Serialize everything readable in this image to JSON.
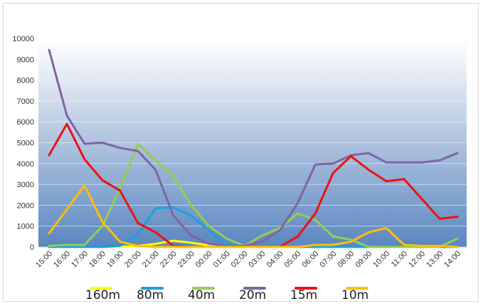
{
  "chart_data": {
    "type": "line",
    "title": "",
    "xlabel": "",
    "ylabel": "",
    "ylim": [
      0,
      10000
    ],
    "y_ticks": [
      "0",
      "1000",
      "2000",
      "3000",
      "4000",
      "5000",
      "6000",
      "7000",
      "8000",
      "9000",
      "10000"
    ],
    "categories": [
      "15:00",
      "16:00",
      "17:00",
      "18:00",
      "19:00",
      "20:00",
      "21:00",
      "22:00",
      "23:00",
      "00:00",
      "01:00",
      "02:00",
      "03:00",
      "04:00",
      "05:00",
      "06:00",
      "07:00",
      "08:00",
      "09:00",
      "10:00",
      "11:00",
      "12:00",
      "13:00",
      "14:00"
    ],
    "grid": true,
    "legend_position": "bottom",
    "background": "blue vertical gradient",
    "series": [
      {
        "name": "160m",
        "color": "#ffff00",
        "values": [
          0,
          0,
          0,
          0,
          0,
          50,
          150,
          300,
          200,
          80,
          0,
          0,
          0,
          0,
          0,
          0,
          0,
          0,
          0,
          0,
          0,
          0,
          0,
          0
        ]
      },
      {
        "name": "80m",
        "color": "#1aa0e0",
        "values": [
          0,
          0,
          0,
          0,
          50,
          600,
          1850,
          1900,
          1500,
          800,
          100,
          0,
          0,
          0,
          0,
          0,
          0,
          0,
          0,
          0,
          0,
          0,
          0,
          0
        ]
      },
      {
        "name": "40m",
        "color": "#92d050",
        "values": [
          50,
          100,
          100,
          1000,
          2800,
          4950,
          4150,
          3400,
          2000,
          1000,
          400,
          50,
          550,
          900,
          1600,
          1300,
          500,
          350,
          0,
          0,
          0,
          0,
          0,
          400
        ]
      },
      {
        "name": "20m",
        "color": "#8064a2",
        "values": [
          9450,
          6300,
          4950,
          5000,
          4750,
          4600,
          3700,
          1500,
          550,
          150,
          50,
          50,
          250,
          800,
          2100,
          3950,
          4000,
          4400,
          4500,
          4050,
          4050,
          4050,
          4150,
          4500
        ]
      },
      {
        "name": "15m",
        "color": "#ee1111",
        "values": [
          4400,
          5900,
          4200,
          3200,
          2700,
          1150,
          700,
          50,
          0,
          0,
          0,
          0,
          0,
          0,
          500,
          1600,
          3550,
          4350,
          3700,
          3150,
          3250,
          2300,
          1350,
          1450
        ]
      },
      {
        "name": "10m",
        "color": "#ffc000",
        "values": [
          650,
          1800,
          2950,
          1200,
          250,
          50,
          0,
          0,
          0,
          0,
          0,
          0,
          0,
          0,
          0,
          100,
          100,
          250,
          700,
          900,
          100,
          50,
          50,
          0
        ]
      }
    ]
  }
}
